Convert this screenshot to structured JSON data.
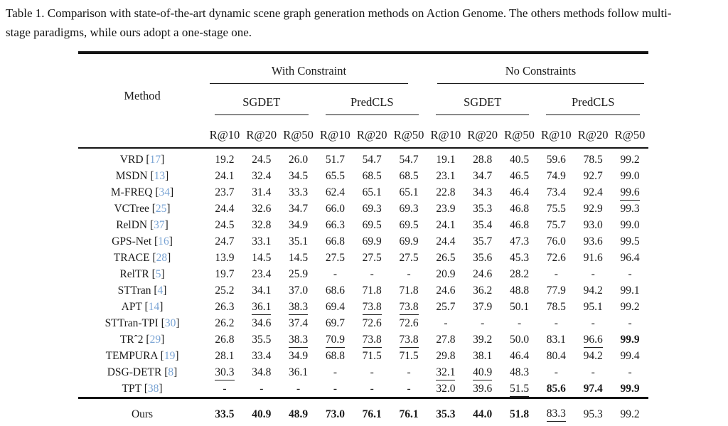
{
  "caption": {
    "line1": "Table 1. Comparison with state-of-the-art dynamic scene graph generation methods on Action Genome. The others methods follow multi-",
    "line2": "stage paradigms, while ours adopt a one-stage one."
  },
  "colors": {
    "citation": "#7aa4d4",
    "text": "#1b1b1b",
    "rule": "#141414"
  },
  "header": {
    "method_label": "Method",
    "groups": [
      {
        "label": "With Constraint"
      },
      {
        "label": "No Constraints"
      }
    ],
    "subgroups": [
      "SGDET",
      "PredCLS",
      "SGDET",
      "PredCLS"
    ],
    "metrics": [
      "R@10",
      "R@20",
      "R@50",
      "R@10",
      "R@20",
      "R@50",
      "R@10",
      "R@20",
      "R@50",
      "R@10",
      "R@20",
      "R@50"
    ]
  },
  "table": {
    "cite_open": "[",
    "cite_close": "]",
    "rows": [
      {
        "method": "VRD",
        "cite": "17",
        "cells": [
          {
            "v": "19.2"
          },
          {
            "v": "24.5"
          },
          {
            "v": "26.0"
          },
          {
            "v": "51.7"
          },
          {
            "v": "54.7"
          },
          {
            "v": "54.7"
          },
          {
            "v": "19.1"
          },
          {
            "v": "28.8"
          },
          {
            "v": "40.5"
          },
          {
            "v": "59.6"
          },
          {
            "v": "78.5"
          },
          {
            "v": "99.2"
          }
        ]
      },
      {
        "method": "MSDN",
        "cite": "13",
        "cells": [
          {
            "v": "24.1"
          },
          {
            "v": "32.4"
          },
          {
            "v": "34.5"
          },
          {
            "v": "65.5"
          },
          {
            "v": "68.5"
          },
          {
            "v": "68.5"
          },
          {
            "v": "23.1"
          },
          {
            "v": "34.7"
          },
          {
            "v": "46.5"
          },
          {
            "v": "74.9"
          },
          {
            "v": "92.7"
          },
          {
            "v": "99.0"
          }
        ]
      },
      {
        "method": "M-FREQ",
        "cite": "34",
        "cells": [
          {
            "v": "23.7"
          },
          {
            "v": "31.4"
          },
          {
            "v": "33.3"
          },
          {
            "v": "62.4"
          },
          {
            "v": "65.1"
          },
          {
            "v": "65.1"
          },
          {
            "v": "22.8"
          },
          {
            "v": "34.3"
          },
          {
            "v": "46.4"
          },
          {
            "v": "73.4"
          },
          {
            "v": "92.4"
          },
          {
            "v": "99.6",
            "u": true
          }
        ]
      },
      {
        "method": "VCTree",
        "cite": "25",
        "cells": [
          {
            "v": "24.4"
          },
          {
            "v": "32.6"
          },
          {
            "v": "34.7"
          },
          {
            "v": "66.0"
          },
          {
            "v": "69.3"
          },
          {
            "v": "69.3"
          },
          {
            "v": "23.9"
          },
          {
            "v": "35.3"
          },
          {
            "v": "46.8"
          },
          {
            "v": "75.5"
          },
          {
            "v": "92.9"
          },
          {
            "v": "99.3"
          }
        ]
      },
      {
        "method": "RelDN",
        "cite": "37",
        "cells": [
          {
            "v": "24.5"
          },
          {
            "v": "32.8"
          },
          {
            "v": "34.9"
          },
          {
            "v": "66.3"
          },
          {
            "v": "69.5"
          },
          {
            "v": "69.5"
          },
          {
            "v": "24.1"
          },
          {
            "v": "35.4"
          },
          {
            "v": "46.8"
          },
          {
            "v": "75.7"
          },
          {
            "v": "93.0"
          },
          {
            "v": "99.0"
          }
        ]
      },
      {
        "method": "GPS-Net",
        "cite": "16",
        "cells": [
          {
            "v": "24.7"
          },
          {
            "v": "33.1"
          },
          {
            "v": "35.1"
          },
          {
            "v": "66.8"
          },
          {
            "v": "69.9"
          },
          {
            "v": "69.9"
          },
          {
            "v": "24.4"
          },
          {
            "v": "35.7"
          },
          {
            "v": "47.3"
          },
          {
            "v": "76.0"
          },
          {
            "v": "93.6"
          },
          {
            "v": "99.5"
          }
        ]
      },
      {
        "method": "TRACE",
        "cite": "28",
        "cells": [
          {
            "v": "13.9"
          },
          {
            "v": "14.5"
          },
          {
            "v": "14.5"
          },
          {
            "v": "27.5"
          },
          {
            "v": "27.5"
          },
          {
            "v": "27.5"
          },
          {
            "v": "26.5"
          },
          {
            "v": "35.6"
          },
          {
            "v": "45.3"
          },
          {
            "v": "72.6"
          },
          {
            "v": "91.6"
          },
          {
            "v": "96.4"
          }
        ]
      },
      {
        "method": "RelTR",
        "cite": "5",
        "cells": [
          {
            "v": "19.7"
          },
          {
            "v": "23.4"
          },
          {
            "v": "25.9"
          },
          {
            "v": "-"
          },
          {
            "v": "-"
          },
          {
            "v": "-"
          },
          {
            "v": "20.9"
          },
          {
            "v": "24.6"
          },
          {
            "v": "28.2"
          },
          {
            "v": "-"
          },
          {
            "v": "-"
          },
          {
            "v": "-"
          }
        ]
      },
      {
        "method": "STTran",
        "cite": "4",
        "cells": [
          {
            "v": "25.2"
          },
          {
            "v": "34.1"
          },
          {
            "v": "37.0"
          },
          {
            "v": "68.6"
          },
          {
            "v": "71.8"
          },
          {
            "v": "71.8"
          },
          {
            "v": "24.6"
          },
          {
            "v": "36.2"
          },
          {
            "v": "48.8"
          },
          {
            "v": "77.9"
          },
          {
            "v": "94.2"
          },
          {
            "v": "99.1"
          }
        ]
      },
      {
        "method": "APT",
        "cite": "14",
        "cells": [
          {
            "v": "26.3"
          },
          {
            "v": "36.1",
            "u": true
          },
          {
            "v": "38.3",
            "u": true
          },
          {
            "v": "69.4"
          },
          {
            "v": "73.8",
            "u": true
          },
          {
            "v": "73.8",
            "u": true
          },
          {
            "v": "25.7"
          },
          {
            "v": "37.9"
          },
          {
            "v": "50.1"
          },
          {
            "v": "78.5"
          },
          {
            "v": "95.1"
          },
          {
            "v": "99.2"
          }
        ]
      },
      {
        "method": "STTran-TPI",
        "cite": "30",
        "cells": [
          {
            "v": "26.2"
          },
          {
            "v": "34.6"
          },
          {
            "v": "37.4"
          },
          {
            "v": "69.7"
          },
          {
            "v": "72.6"
          },
          {
            "v": "72.6"
          },
          {
            "v": "-"
          },
          {
            "v": "-"
          },
          {
            "v": "-"
          },
          {
            "v": "-"
          },
          {
            "v": "-"
          },
          {
            "v": "-"
          }
        ]
      },
      {
        "method": "TRˆ2",
        "cite": "29",
        "cells": [
          {
            "v": "26.8"
          },
          {
            "v": "35.5"
          },
          {
            "v": "38.3",
            "u": true
          },
          {
            "v": "70.9",
            "u": true
          },
          {
            "v": "73.8",
            "u": true
          },
          {
            "v": "73.8",
            "u": true
          },
          {
            "v": "27.8"
          },
          {
            "v": "39.2"
          },
          {
            "v": "50.0"
          },
          {
            "v": "83.1"
          },
          {
            "v": "96.6",
            "u": true
          },
          {
            "v": "99.9",
            "b": true
          }
        ]
      },
      {
        "method": "TEMPURA",
        "cite": "19",
        "cells": [
          {
            "v": "28.1"
          },
          {
            "v": "33.4"
          },
          {
            "v": "34.9"
          },
          {
            "v": "68.8"
          },
          {
            "v": "71.5"
          },
          {
            "v": "71.5"
          },
          {
            "v": "29.8"
          },
          {
            "v": "38.1"
          },
          {
            "v": "46.4"
          },
          {
            "v": "80.4"
          },
          {
            "v": "94.2"
          },
          {
            "v": "99.4"
          }
        ]
      },
      {
        "method": "DSG-DETR",
        "cite": "8",
        "cells": [
          {
            "v": "30.3",
            "u": true
          },
          {
            "v": "34.8"
          },
          {
            "v": "36.1"
          },
          {
            "v": "-"
          },
          {
            "v": "-"
          },
          {
            "v": "-"
          },
          {
            "v": "32.1",
            "u": true
          },
          {
            "v": "40.9",
            "u": true
          },
          {
            "v": "48.3"
          },
          {
            "v": "-"
          },
          {
            "v": "-"
          },
          {
            "v": "-"
          }
        ]
      },
      {
        "method": "TPT",
        "cite": "38",
        "cells": [
          {
            "v": "-"
          },
          {
            "v": "-"
          },
          {
            "v": "-"
          },
          {
            "v": "-"
          },
          {
            "v": "-"
          },
          {
            "v": "-"
          },
          {
            "v": "32.0"
          },
          {
            "v": "39.6"
          },
          {
            "v": "51.5",
            "u": true
          },
          {
            "v": "85.6",
            "b": true
          },
          {
            "v": "97.4",
            "b": true
          },
          {
            "v": "99.9",
            "b": true
          }
        ]
      }
    ],
    "ours": {
      "method": "Ours",
      "cells": [
        {
          "v": "33.5",
          "b": true
        },
        {
          "v": "40.9",
          "b": true
        },
        {
          "v": "48.9",
          "b": true
        },
        {
          "v": "73.0",
          "b": true
        },
        {
          "v": "76.1",
          "b": true
        },
        {
          "v": "76.1",
          "b": true
        },
        {
          "v": "35.3",
          "b": true
        },
        {
          "v": "44.0",
          "b": true
        },
        {
          "v": "51.8",
          "b": true
        },
        {
          "v": "83.3",
          "u": true
        },
        {
          "v": "95.3"
        },
        {
          "v": "99.2"
        }
      ]
    }
  }
}
